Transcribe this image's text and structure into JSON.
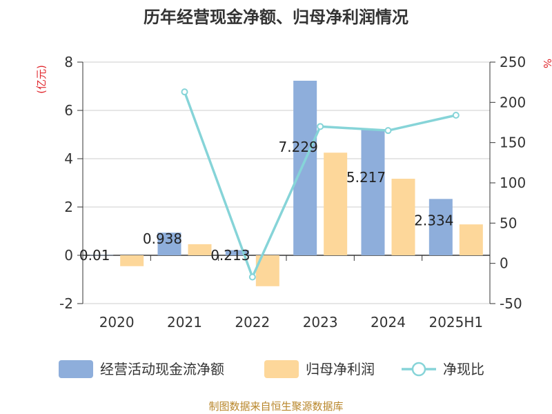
{
  "chart_data": {
    "type": "bar",
    "title": "历年经营现金净额、归母净利润情况",
    "categories": [
      "2020",
      "2021",
      "2022",
      "2023",
      "2024",
      "2025H1"
    ],
    "series": [
      {
        "name": "经营活动现金流净额",
        "type": "bar",
        "axis": "left",
        "color": "#8eaedb",
        "values": [
          0.01,
          0.938,
          0.213,
          7.229,
          5.217,
          2.334
        ],
        "labels": [
          "0.01",
          "0.938",
          "0.213",
          "7.229",
          "5.217",
          "2.334"
        ]
      },
      {
        "name": "归母净利润",
        "type": "bar",
        "axis": "left",
        "color": "#fdd79a",
        "values": [
          -0.45,
          0.46,
          -1.28,
          4.25,
          3.17,
          1.28
        ]
      },
      {
        "name": "净现比",
        "type": "line",
        "axis": "right",
        "color": "#86d4d8",
        "values": [
          null,
          213,
          -17,
          170,
          165,
          184
        ]
      }
    ],
    "y_left": {
      "label": "(亿元)",
      "ylim": [
        -2,
        8
      ],
      "ticks": [
        -2,
        0,
        2,
        4,
        6,
        8
      ]
    },
    "y_right": {
      "label": "%",
      "ylim": [
        -50,
        250
      ],
      "ticks": [
        -50,
        0,
        50,
        100,
        150,
        200,
        250
      ]
    },
    "grid": true,
    "legend_position": "bottom"
  },
  "source": "制图数据来自恒生聚源数据库"
}
